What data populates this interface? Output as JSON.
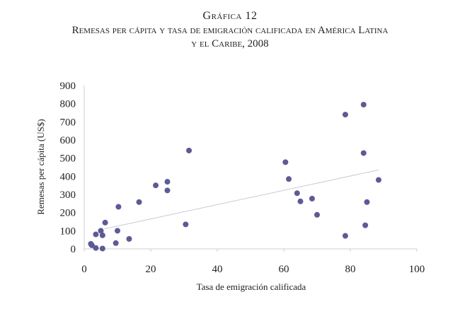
{
  "header": {
    "figure_label": "Gráfica 12",
    "title_line1": "Remesas per cápita y tasa de emigración calificada en América Latina",
    "title_line2": "y el Caribe, 2008"
  },
  "chart_data": {
    "type": "scatter",
    "title": "Remesas per cápita y tasa de emigración calificada en América Latina y el Caribe, 2008",
    "xlabel": "Tasa de emigración calificada",
    "ylabel": "Remesas per cápita (US$)",
    "xlim": [
      0,
      100
    ],
    "ylim": [
      0,
      900
    ],
    "xticks": [
      0,
      20,
      40,
      60,
      80,
      100
    ],
    "yticks": [
      0,
      100,
      200,
      300,
      400,
      500,
      600,
      700,
      800,
      900
    ],
    "grid": false,
    "points": [
      {
        "x": 2.0,
        "y": 28
      },
      {
        "x": 2.3,
        "y": 20
      },
      {
        "x": 3.5,
        "y": 5
      },
      {
        "x": 3.5,
        "y": 80
      },
      {
        "x": 5.0,
        "y": 100
      },
      {
        "x": 5.5,
        "y": 75
      },
      {
        "x": 5.5,
        "y": 2
      },
      {
        "x": 6.3,
        "y": 145
      },
      {
        "x": 9.5,
        "y": 32
      },
      {
        "x": 10.0,
        "y": 100
      },
      {
        "x": 10.3,
        "y": 232
      },
      {
        "x": 13.5,
        "y": 55
      },
      {
        "x": 16.5,
        "y": 258
      },
      {
        "x": 21.5,
        "y": 350
      },
      {
        "x": 25.0,
        "y": 370
      },
      {
        "x": 25.0,
        "y": 322
      },
      {
        "x": 30.5,
        "y": 135
      },
      {
        "x": 31.5,
        "y": 542
      },
      {
        "x": 60.5,
        "y": 478
      },
      {
        "x": 61.5,
        "y": 385
      },
      {
        "x": 64.0,
        "y": 307
      },
      {
        "x": 65.0,
        "y": 262
      },
      {
        "x": 68.5,
        "y": 277
      },
      {
        "x": 70.0,
        "y": 188
      },
      {
        "x": 78.5,
        "y": 740
      },
      {
        "x": 78.5,
        "y": 72
      },
      {
        "x": 84.0,
        "y": 795
      },
      {
        "x": 84.0,
        "y": 528
      },
      {
        "x": 84.5,
        "y": 130
      },
      {
        "x": 85.0,
        "y": 258
      },
      {
        "x": 88.5,
        "y": 380
      }
    ],
    "trendline": {
      "x": [
        6.0,
        88.5
      ],
      "y": [
        110,
        435
      ]
    },
    "colors": {
      "point": "#5c5b96",
      "trend": "#c9c9d6",
      "axis": "#cfcfcf"
    }
  }
}
